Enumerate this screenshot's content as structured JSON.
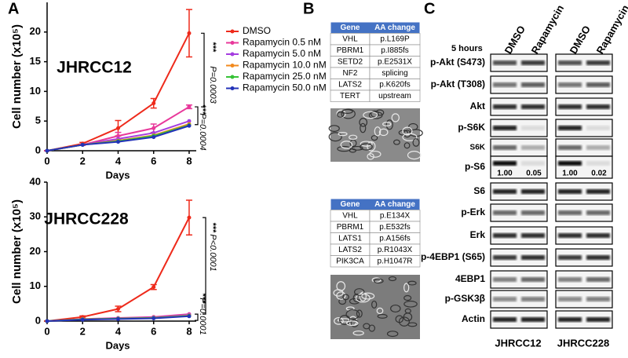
{
  "panels": {
    "a": "A",
    "b": "B",
    "c": "C"
  },
  "chart_data": [
    {
      "type": "line",
      "title": "JHRCC12",
      "x_label": "Days",
      "y_label": "Cell number (x10⁵)",
      "x": [
        0,
        2,
        4,
        6,
        8
      ],
      "xlim": [
        0,
        8.4
      ],
      "xticks": [
        0,
        2,
        4,
        6,
        8
      ],
      "ylim": [
        0,
        25
      ],
      "yticks": [
        0,
        5,
        10,
        15,
        20
      ],
      "legend": "top-right",
      "series": [
        {
          "name": "DMSO",
          "color": "#ee2a1b",
          "values": [
            0,
            1.2,
            3.8,
            8,
            19.8
          ],
          "errors": [
            0,
            0.2,
            1.3,
            0.8,
            4
          ]
        },
        {
          "name": "Rapamycin 0.5 nM",
          "color": "#e8399b",
          "values": [
            0,
            1,
            2.5,
            3.8,
            7.4
          ],
          "errors": [
            0,
            0.1,
            0.6,
            0.7,
            0.3
          ]
        },
        {
          "name": "Rapamycin 5.0 nM",
          "color": "#a53de0",
          "values": [
            0,
            1,
            2,
            3,
            5
          ]
        },
        {
          "name": "Rapamycin 10.0 nM",
          "color": "#f28a1e",
          "values": [
            0,
            1,
            1.7,
            2.6,
            4.5
          ]
        },
        {
          "name": "Rapamycin 25.0 nM",
          "color": "#36c236",
          "values": [
            0,
            1,
            1.6,
            2.5,
            4.3
          ]
        },
        {
          "name": "Rapamycin 50.0 nM",
          "color": "#2433b8",
          "values": [
            0,
            1,
            1.5,
            2.3,
            4.2
          ]
        }
      ],
      "annotations": [
        "***",
        "P=0.0003",
        "***",
        "P=0.0004"
      ]
    },
    {
      "type": "line",
      "title": "JHRCC228",
      "x_label": "Days",
      "y_label": "Cell number (x10⁵)",
      "x": [
        0,
        2,
        4,
        6,
        8
      ],
      "xlim": [
        0,
        8.4
      ],
      "xticks": [
        0,
        2,
        4,
        6,
        8
      ],
      "ylim": [
        0,
        40
      ],
      "yticks": [
        0,
        10,
        20,
        30,
        40
      ],
      "series": [
        {
          "color": "#ee2a1b",
          "values": [
            0,
            1.2,
            3.5,
            9.8,
            29.8
          ],
          "errors": [
            0,
            0.3,
            0.8,
            0.7,
            5
          ]
        },
        {
          "color": "#e8399b",
          "values": [
            0,
            0.6,
            0.9,
            1.2,
            2
          ]
        },
        {
          "color": "#a53de0",
          "values": [
            0,
            0.5,
            0.8,
            1,
            1.8
          ]
        },
        {
          "color": "#f28a1e",
          "values": [
            0,
            0.5,
            0.7,
            0.9,
            1.6
          ]
        },
        {
          "color": "#36c236",
          "values": [
            0,
            0.5,
            0.7,
            0.9,
            1.5
          ]
        },
        {
          "color": "#2433b8",
          "values": [
            0,
            0.4,
            0.6,
            0.8,
            1.4
          ]
        }
      ],
      "annotations": [
        "***",
        "P<0.0001",
        "***",
        "P=0.0001"
      ]
    }
  ],
  "tables": [
    {
      "header": [
        "Gene",
        "AA change"
      ],
      "rows": [
        [
          "VHL",
          "p.L169P"
        ],
        [
          "PBRM1",
          "p.I885fs"
        ],
        [
          "SETD2",
          "p.E2531X"
        ],
        [
          "NF2",
          "splicing"
        ],
        [
          "LATS2",
          "p.K620fs"
        ],
        [
          "TERT",
          "upstream"
        ]
      ]
    },
    {
      "header": [
        "Gene",
        "AA change"
      ],
      "rows": [
        [
          "VHL",
          "p.E134X"
        ],
        [
          "PBRM1",
          "p.E532fs"
        ],
        [
          "LATS1",
          "p.A156fs"
        ],
        [
          "LATS2",
          "p.R1043X"
        ],
        [
          "PIK3CA",
          "p.H1047R"
        ]
      ]
    }
  ],
  "blots": {
    "time": "5 hours",
    "columns": [
      "DMSO",
      "Rapamycin",
      "DMSO",
      "Rapamycin"
    ],
    "rows": [
      "p-Akt (S473)",
      "p-Akt (T308)",
      "Akt",
      "p-S6K",
      "S6K",
      "p-S6",
      "S6",
      "p-Erk",
      "Erk",
      "p-4EBP1 (S65)",
      "4EBP1",
      "p-GSK3β",
      "Actin"
    ],
    "quantification": [
      "1.00",
      "0.05",
      "1.00",
      "0.02"
    ],
    "cell_lines": [
      "JHRCC12",
      "JHRCC228"
    ]
  }
}
